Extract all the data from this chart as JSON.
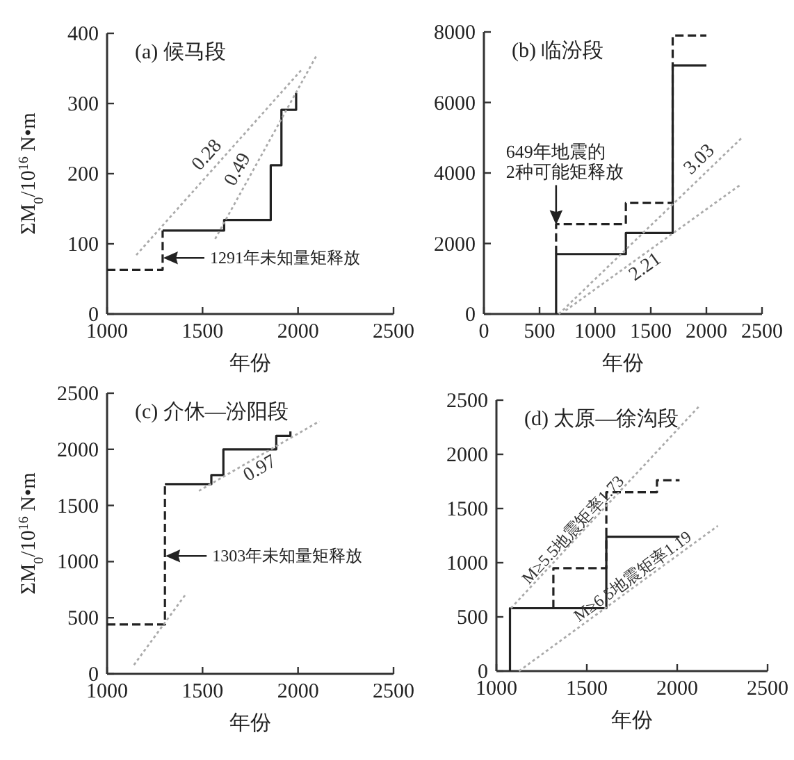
{
  "chart_data": [
    {
      "type": "step",
      "title": "(a) 候马段",
      "xlabel": "年份",
      "ylabel": "ΣM$_{0}$/10$^{16}$ N•m",
      "xlim": [
        1000,
        2500
      ],
      "ylim": [
        0,
        400
      ],
      "xticks": [
        1000,
        1500,
        2000,
        2500
      ],
      "yticks": [
        0,
        100,
        200,
        300,
        400
      ],
      "grid": false,
      "legend": false,
      "series": [
        {
          "type": "step",
          "color": "#222222",
          "line_style": "solid",
          "x": [
            1291,
            1613,
            1857,
            1913,
            1990
          ],
          "values": [
            119,
            134,
            212,
            291,
            315
          ]
        },
        {
          "type": "step",
          "color": "#222222",
          "line_style": "dashed",
          "x": [
            1000,
            1291
          ],
          "values": [
            63,
            119
          ]
        },
        {
          "type": "line",
          "name": "0.28",
          "color": "#aaaaaa",
          "line_style": "dotted",
          "x": [
            1153,
            2018
          ],
          "values": [
            84,
            348
          ]
        },
        {
          "type": "line",
          "name": "0.49",
          "color": "#aaaaaa",
          "line_style": "dotted",
          "x": [
            1566,
            2100
          ],
          "values": [
            107,
            370
          ]
        }
      ],
      "annotations": [
        {
          "text": "1291年未知量矩释放",
          "x": 1291,
          "y": 80
        }
      ]
    },
    {
      "type": "step",
      "title": "(b) 临汾段",
      "xlabel": "年份",
      "xlim": [
        0,
        2500
      ],
      "ylim": [
        0,
        8000
      ],
      "xticks": [
        0,
        500,
        1000,
        1500,
        2000,
        2500
      ],
      "yticks": [
        0,
        2000,
        4000,
        6000,
        8000
      ],
      "grid": false,
      "legend": false,
      "series": [
        {
          "type": "step",
          "color": "#222222",
          "line_style": "solid",
          "x": [
            649,
            649,
            1276,
            1697,
            2000
          ],
          "values": [
            0,
            1700,
            2300,
            7050,
            7050
          ]
        },
        {
          "type": "step",
          "color": "#222222",
          "line_style": "dashed",
          "x": [
            649,
            649,
            1276,
            1697,
            2000
          ],
          "values": [
            1700,
            2550,
            3150,
            7900,
            7900
          ]
        },
        {
          "type": "line",
          "name": "3.03",
          "color": "#aaaaaa",
          "line_style": "dotted",
          "x": [
            674,
            2319
          ],
          "values": [
            0,
            5000
          ]
        },
        {
          "type": "line",
          "name": "2.21",
          "color": "#aaaaaa",
          "line_style": "dotted",
          "x": [
            734,
            2299
          ],
          "values": [
            100,
            3650
          ]
        }
      ],
      "annotations": [
        {
          "text": "649年地震的\n2种可能矩释放",
          "x": 649,
          "y": 2550
        }
      ]
    },
    {
      "type": "step",
      "title": "(c) 介休—汾阳段",
      "xlabel": "年份",
      "ylabel": "ΣM$_{0}$/10$^{16}$ N•m",
      "xlim": [
        1000,
        2500
      ],
      "ylim": [
        0,
        2500
      ],
      "xticks": [
        1000,
        1500,
        2000,
        2500
      ],
      "yticks": [
        0,
        500,
        1000,
        1500,
        2000,
        2500
      ],
      "grid": false,
      "legend": false,
      "series": [
        {
          "type": "step",
          "color": "#222222",
          "line_style": "solid",
          "x": [
            1303,
            1546,
            1609,
            1886,
            1960
          ],
          "values": [
            1690,
            1770,
            2000,
            2120,
            2160
          ]
        },
        {
          "type": "step",
          "color": "#222222",
          "line_style": "dashed",
          "x": [
            1000,
            1303
          ],
          "values": [
            440,
            1690
          ]
        },
        {
          "type": "line",
          "name": "0.97",
          "color": "#aaaaaa",
          "line_style": "dotted",
          "x": [
            1481,
            2112
          ],
          "values": [
            1630,
            2250
          ]
        },
        {
          "type": "line",
          "color": "#aaaaaa",
          "line_style": "dotted",
          "x": [
            1141,
            1408
          ],
          "values": [
            80,
            700
          ]
        }
      ],
      "annotations": [
        {
          "text": "1303年未知量矩释放",
          "x": 1303,
          "y": 1050
        }
      ]
    },
    {
      "type": "step",
      "title": "(d) 太原—徐沟段",
      "xlabel": "年份",
      "xlim": [
        1000,
        2500
      ],
      "ylim": [
        0,
        2500
      ],
      "xticks": [
        1000,
        1500,
        2000,
        2500
      ],
      "yticks": [
        0,
        500,
        1000,
        1500,
        2000,
        2500
      ],
      "grid": false,
      "legend": false,
      "series": [
        {
          "type": "step",
          "color": "#222222",
          "line_style": "solid",
          "x": [
            1075,
            1075,
            1608,
            2013
          ],
          "values": [
            0,
            580,
            1240,
            1240
          ]
        },
        {
          "type": "step",
          "color": "#222222",
          "line_style": "dashed",
          "x": [
            1315,
            1315,
            1608,
            1888,
            2013
          ],
          "values": [
            580,
            950,
            1650,
            1760,
            1760
          ]
        },
        {
          "type": "line",
          "name": "M≥5.5地震矩率1.73",
          "color": "#aaaaaa",
          "line_style": "dotted",
          "x": [
            1080,
            2125
          ],
          "values": [
            580,
            2450
          ]
        },
        {
          "type": "line",
          "name": "M≥6.5地震矩率1.19",
          "color": "#aaaaaa",
          "line_style": "dotted",
          "x": [
            1125,
            2225
          ],
          "values": [
            0,
            1340
          ]
        }
      ]
    }
  ]
}
